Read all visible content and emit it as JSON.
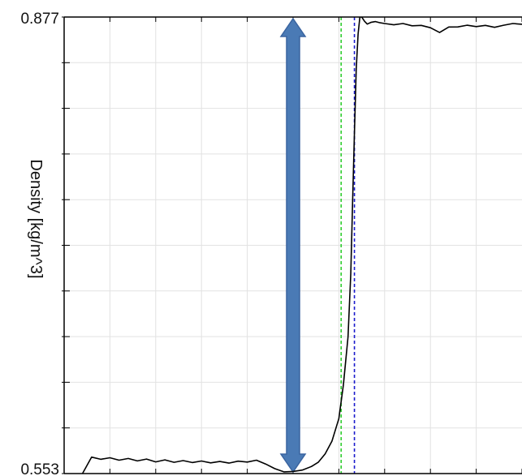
{
  "chart_data": {
    "type": "line",
    "title": "",
    "xlabel": "",
    "ylabel": "Density [kg/m^3]",
    "ylim": [
      0.553,
      0.877
    ],
    "xlim": [
      0,
      100
    ],
    "y_tick_labels": [
      "0.877",
      "0.553"
    ],
    "y_ticks": [
      0.553,
      0.5854,
      0.6178,
      0.6502,
      0.6826,
      0.715,
      0.7474,
      0.7798,
      0.8122,
      0.8446,
      0.877
    ],
    "x_ticks": [
      0,
      10,
      20,
      30,
      40,
      50,
      60,
      70,
      80,
      90,
      100
    ],
    "grid": true,
    "series": [
      {
        "color": "#000000",
        "x": [
          4.0,
          6.0,
          8.0,
          10.0,
          12.0,
          14.0,
          16.0,
          18.0,
          20.0,
          22.0,
          24.0,
          26.0,
          28.0,
          30.0,
          32.0,
          34.0,
          36.0,
          38.0,
          40.0,
          42.0,
          44.0,
          46.0,
          48.0,
          50.0,
          52.0,
          54.0,
          55.5,
          57.0,
          58.5,
          60.0,
          61.0,
          62.0,
          62.6,
          63.0,
          63.4,
          63.8,
          64.2,
          64.6,
          65.0,
          65.6,
          66.2,
          67.0,
          68.0,
          69.0,
          70.0,
          72.0,
          74.0,
          76.0,
          78.0,
          80.0,
          82.0,
          84.0,
          86.0,
          88.0,
          90.0,
          92.0,
          94.0,
          96.0,
          98.0,
          100.0
        ],
        "y": [
          0.553,
          0.5647,
          0.5631,
          0.5642,
          0.5625,
          0.5637,
          0.562,
          0.5633,
          0.5613,
          0.5627,
          0.561,
          0.5622,
          0.5608,
          0.5619,
          0.5606,
          0.5616,
          0.5604,
          0.5618,
          0.5612,
          0.5625,
          0.5598,
          0.5565,
          0.5542,
          0.5545,
          0.5555,
          0.558,
          0.561,
          0.567,
          0.576,
          0.592,
          0.616,
          0.65,
          0.695,
          0.745,
          0.795,
          0.84,
          0.865,
          0.877,
          0.877,
          0.874,
          0.872,
          0.8732,
          0.8738,
          0.8729,
          0.8724,
          0.8715,
          0.8724,
          0.8708,
          0.8711,
          0.8694,
          0.866,
          0.8699,
          0.87,
          0.8712,
          0.8702,
          0.8711,
          0.8697,
          0.8712,
          0.8724,
          0.8719
        ]
      }
    ],
    "vertical_lines": [
      {
        "x": 60.5,
        "color": "#2ecc2e",
        "style": "dashed"
      },
      {
        "x": 63.4,
        "color": "#1a1acc",
        "style": "dashed"
      }
    ],
    "annotations": [
      {
        "type": "double-arrow",
        "x": 50.0,
        "y_from": 0.553,
        "y_to": 0.877,
        "color": "#4a7ab5"
      }
    ]
  }
}
